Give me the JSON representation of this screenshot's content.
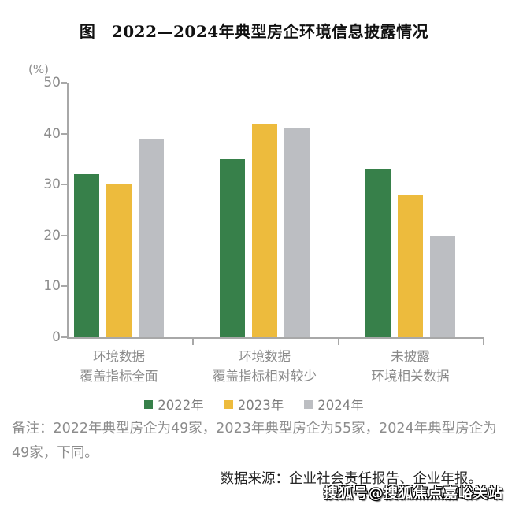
{
  "title": "图　2022—2024年典型房企环境信息披露情况",
  "chart_data": {
    "type": "bar",
    "title": "图　2022—2024年典型房企环境信息披露情况",
    "unit_label": "(%)",
    "categories": [
      [
        "环境数据",
        "覆盖指标全面"
      ],
      [
        "环境数据",
        "覆盖指标相对较少"
      ],
      [
        "未披露",
        "环境相关数据"
      ]
    ],
    "series": [
      {
        "name": "2022年",
        "color": "#37804A",
        "values": [
          32,
          35,
          33
        ]
      },
      {
        "name": "2023年",
        "color": "#EDBB3D",
        "values": [
          30,
          42,
          28
        ]
      },
      {
        "name": "2024年",
        "color": "#BCBEC2",
        "values": [
          39,
          41,
          20
        ]
      }
    ],
    "ylim": [
      0,
      50
    ],
    "ytick_step": 10,
    "grid": false,
    "legend_position": "bottom",
    "axis_color": "#A8A8A8"
  },
  "note": "备注：2022年典型房企为49家，2023年典型房企为55家，2024年典型房企为49家，下同。",
  "source": "数据来源：企业社会责任报告、企业年报。",
  "watermark": "搜狐号@搜狐焦点嘉峪关站"
}
